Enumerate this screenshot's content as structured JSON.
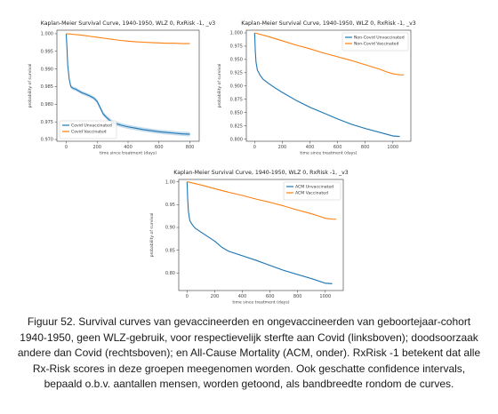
{
  "chart_data": [
    {
      "type": "line",
      "title": "Kaplan-Meier Survival Curve, 1940-1950, WLZ 0, RxRisk -1, _v3",
      "xlabel": "time since treatment (days)",
      "ylabel": "probability of survival",
      "xlim": [
        -60,
        860
      ],
      "ylim": [
        0.9695,
        1.001
      ],
      "xticks": [
        0,
        200,
        400,
        600,
        800
      ],
      "xtick_labels": [
        "0",
        "200",
        "400",
        "600",
        "800"
      ],
      "yticks": [
        0.97,
        0.975,
        0.98,
        0.985,
        0.99,
        0.995,
        1.0
      ],
      "ytick_labels": [
        "0.970",
        "0.975",
        "0.980",
        "0.985",
        "0.990",
        "0.995",
        "1.000"
      ],
      "legend_position": "bottom-left",
      "series": [
        {
          "name": "Covid Unvaccinated",
          "color": "#1f77b4",
          "x": [
            0,
            5,
            10,
            20,
            30,
            45,
            60,
            80,
            100,
            130,
            160,
            180,
            200,
            220,
            240,
            260,
            280,
            300,
            330,
            360,
            400,
            450,
            500,
            550,
            600,
            650,
            700,
            750,
            800
          ],
          "y": [
            1.0,
            0.996,
            0.991,
            0.987,
            0.985,
            0.9845,
            0.9843,
            0.9838,
            0.9833,
            0.9828,
            0.9822,
            0.9817,
            0.9808,
            0.979,
            0.9772,
            0.9763,
            0.9755,
            0.9748,
            0.9744,
            0.974,
            0.9736,
            0.9732,
            0.9728,
            0.9725,
            0.9722,
            0.972,
            0.9718,
            0.9716,
            0.9715
          ],
          "ci": [
            0,
            0.0003,
            0.0004,
            0.0005,
            0.0005,
            0.0005,
            0.0005,
            0.0005,
            0.0005,
            0.0005,
            0.0005,
            0.0005,
            0.0006,
            0.0006,
            0.0006,
            0.0006,
            0.0006,
            0.0006,
            0.0006,
            0.0006,
            0.0006,
            0.0006,
            0.0006,
            0.0006,
            0.0006,
            0.0006,
            0.0006,
            0.0006,
            0.0006
          ]
        },
        {
          "name": "Covid Vaccinated",
          "color": "#ff7f0e",
          "x": [
            0,
            50,
            100,
            150,
            200,
            250,
            300,
            350,
            400,
            450,
            500,
            550,
            600,
            650,
            700,
            750,
            800
          ],
          "y": [
            1.0,
            0.9998,
            0.9996,
            0.9993,
            0.999,
            0.9987,
            0.9984,
            0.9981,
            0.9979,
            0.9977,
            0.9976,
            0.9975,
            0.9974,
            0.9973,
            0.9973,
            0.9972,
            0.9972
          ],
          "ci": [
            0,
            0,
            0,
            0,
            0,
            0,
            0,
            0,
            0,
            0,
            0,
            0,
            0,
            0,
            0,
            0,
            0
          ]
        }
      ]
    },
    {
      "type": "line",
      "title": "Kaplan-Meier Survival Curve, 1940-1950, WLZ 0, RxRisk -1, _v3",
      "xlabel": "time since treatment (days)",
      "ylabel": "probability of survival",
      "xlim": [
        -60,
        1130
      ],
      "ylim": [
        0.796,
        1.005
      ],
      "xticks": [
        0,
        200,
        400,
        600,
        800,
        1000
      ],
      "xtick_labels": [
        "0",
        "200",
        "400",
        "600",
        "800",
        "1000"
      ],
      "yticks": [
        0.8,
        0.825,
        0.85,
        0.875,
        0.9,
        0.925,
        0.95,
        0.975,
        1.0
      ],
      "ytick_labels": [
        "0.800",
        "0.825",
        "0.850",
        "0.875",
        "0.900",
        "0.925",
        "0.950",
        "0.975",
        "1.000"
      ],
      "legend_position": "top-right",
      "series": [
        {
          "name": "Non-Covid Unvaccinated",
          "color": "#1f77b4",
          "x": [
            0,
            5,
            10,
            20,
            40,
            60,
            100,
            150,
            200,
            300,
            400,
            500,
            600,
            700,
            800,
            900,
            1000,
            1050
          ],
          "y": [
            1.0,
            0.965,
            0.945,
            0.93,
            0.92,
            0.913,
            0.905,
            0.896,
            0.888,
            0.873,
            0.86,
            0.849,
            0.838,
            0.828,
            0.82,
            0.813,
            0.806,
            0.805
          ],
          "ci": [
            0,
            0.001,
            0.001,
            0.001,
            0.001,
            0.001,
            0.001,
            0.001,
            0.001,
            0.001,
            0.001,
            0.001,
            0.001,
            0.001,
            0.001,
            0.001,
            0.0015,
            0.0015
          ]
        },
        {
          "name": "Non-Covid Vaccinated",
          "color": "#ff7f0e",
          "x": [
            0,
            100,
            200,
            300,
            400,
            500,
            600,
            700,
            800,
            900,
            950,
            1000,
            1050,
            1080
          ],
          "y": [
            1.0,
            0.993,
            0.985,
            0.977,
            0.97,
            0.962,
            0.955,
            0.948,
            0.94,
            0.932,
            0.927,
            0.923,
            0.921,
            0.921
          ],
          "ci": [
            0,
            0,
            0,
            0,
            0,
            0,
            0,
            0,
            0,
            0,
            0,
            0,
            0,
            0
          ]
        }
      ]
    },
    {
      "type": "line",
      "title": "Kaplan-Meier Survival Curve, 1940-1950, WLZ 0, RxRisk -1, _v3",
      "xlabel": "time since treatment (days)",
      "ylabel": "probability of survival",
      "xlim": [
        -60,
        1130
      ],
      "ylim": [
        0.762,
        1.005
      ],
      "xticks": [
        0,
        200,
        400,
        600,
        800,
        1000
      ],
      "xtick_labels": [
        "0",
        "200",
        "400",
        "600",
        "800",
        "1000"
      ],
      "yticks": [
        0.8,
        0.85,
        0.9,
        0.95,
        1.0
      ],
      "ytick_labels": [
        "0.80",
        "0.85",
        "0.90",
        "0.95",
        "1.00"
      ],
      "legend_position": "top-right",
      "series": [
        {
          "name": "ACM Unvaccinated",
          "color": "#1f77b4",
          "x": [
            0,
            5,
            10,
            20,
            40,
            60,
            100,
            150,
            200,
            250,
            300,
            400,
            500,
            600,
            700,
            800,
            900,
            1000,
            1050
          ],
          "y": [
            1.0,
            0.96,
            0.935,
            0.915,
            0.905,
            0.898,
            0.89,
            0.88,
            0.87,
            0.857,
            0.848,
            0.838,
            0.828,
            0.817,
            0.806,
            0.797,
            0.788,
            0.778,
            0.777
          ],
          "ci": [
            0,
            0.001,
            0.001,
            0.001,
            0.001,
            0.001,
            0.001,
            0.001,
            0.001,
            0.0012,
            0.0012,
            0.0012,
            0.0012,
            0.0012,
            0.0012,
            0.0015,
            0.0015,
            0.0015,
            0.0015
          ]
        },
        {
          "name": "ACM Vaccinated",
          "color": "#ff7f0e",
          "x": [
            0,
            100,
            200,
            300,
            400,
            500,
            600,
            700,
            800,
            900,
            950,
            1000,
            1050,
            1080
          ],
          "y": [
            1.0,
            0.993,
            0.985,
            0.977,
            0.97,
            0.962,
            0.955,
            0.947,
            0.938,
            0.93,
            0.925,
            0.92,
            0.918,
            0.918
          ],
          "ci": [
            0,
            0,
            0,
            0,
            0,
            0,
            0,
            0,
            0,
            0,
            0,
            0,
            0,
            0
          ]
        }
      ]
    }
  ],
  "caption": "Figuur 52. Survival curves van gevaccineerden en ongevaccineerden van geboortejaar-cohort 1940-1950, geen WLZ-gebruik, voor respectievelijk sterfte aan Covid (linksboven); doodsoorzaak andere dan Covid (rechtsboven); en All-Cause Mortality (ACM, onder). RxRisk -1 betekent dat alle Rx-Risk scores in deze groepen meegenomen worden. Ook geschatte confidence intervals, bepaald o.b.v. aantallen mensen, worden getoond, als bandbreedte rondom de curves."
}
